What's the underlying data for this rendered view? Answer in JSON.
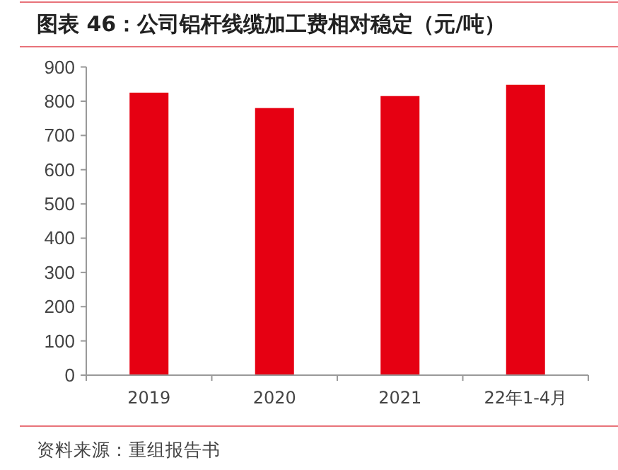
{
  "chart_data": {
    "type": "bar",
    "title": "图表 46：公司铝杆线缆加工费相对稳定（元/吨）",
    "categories": [
      "2019",
      "2020",
      "2021",
      "22年1-4月"
    ],
    "values": [
      825,
      780,
      815,
      848
    ],
    "color": "#e60012",
    "ylim": [
      0,
      900
    ],
    "yticks": [
      0,
      100,
      200,
      300,
      400,
      500,
      600,
      700,
      800,
      900
    ],
    "grid": false,
    "annotations": [
      "资料来源：重组报告书"
    ]
  }
}
